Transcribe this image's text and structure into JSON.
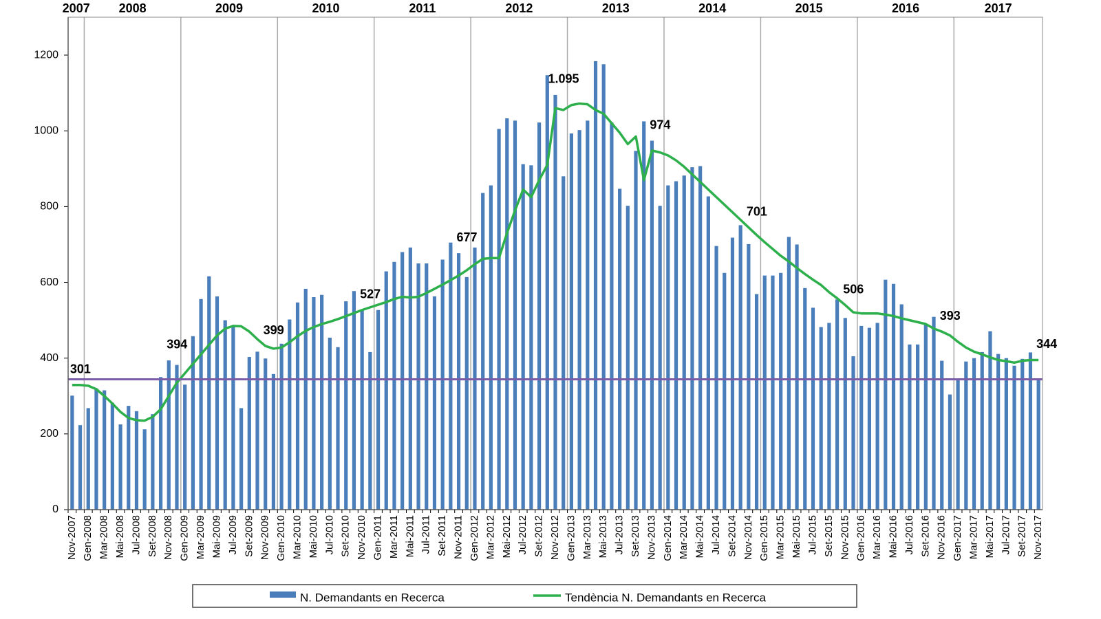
{
  "chart_data": {
    "type": "bar_line",
    "categories": [
      "Nov-2007",
      null,
      "Gen-2008",
      null,
      "Mar-2008",
      null,
      "Mai-2008",
      null,
      "Jul-2008",
      null,
      "Set-2008",
      null,
      "Nov-2008",
      null,
      "Gen-2009",
      null,
      "Mar-2009",
      null,
      "Mai-2009",
      null,
      "Jul-2009",
      null,
      "Set-2009",
      null,
      "Nov-2009",
      null,
      "Gen-2010",
      null,
      "Mar-2010",
      null,
      "Mai-2010",
      null,
      "Jul-2010",
      null,
      "Set-2010",
      null,
      "Nov-2010",
      null,
      "Gen-2011",
      null,
      "Mar-2011",
      null,
      "Mai-2011",
      null,
      "Jul-2011",
      null,
      "Set-2011",
      null,
      "Nov-2011",
      null,
      "Gen-2012",
      null,
      "Mar-2012",
      null,
      "Mai-2012",
      null,
      "Jul-2012",
      null,
      "Set-2012",
      null,
      "Nov-2012",
      null,
      "Gen-2013",
      null,
      "Mar-2013",
      null,
      "Mai-2013",
      null,
      "Jul-2013",
      null,
      "Set-2013",
      null,
      "Nov-2013",
      null,
      "Gen-2014",
      null,
      "Mar-2014",
      null,
      "Mai-2014",
      null,
      "Jul-2014",
      null,
      "Set-2014",
      null,
      "Nov-2014",
      null,
      "Gen-2015",
      null,
      "Mar-2015",
      null,
      "Mai-2015",
      null,
      "Jul-2015",
      null,
      "Set-2015",
      null,
      "Nov-2015",
      null,
      "Gen-2016",
      null,
      "Mar-2016",
      null,
      "Mai-2016",
      null,
      "Jul-2016",
      null,
      "Set-2016",
      null,
      "Nov-2016",
      null,
      "Gen-2017",
      null,
      "Mar-2017",
      null,
      "Mai-2017",
      null,
      "Jul-2017",
      null,
      "Set-2017",
      null,
      "Nov-2017"
    ],
    "years": [
      "2007",
      "2008",
      "2009",
      "2010",
      "2011",
      "2012",
      "2013",
      "2014",
      "2015",
      "2016",
      "2017"
    ],
    "series": [
      {
        "name": "N. Demandants en Recerca",
        "type": "bar",
        "color": "#4a7ebb",
        "values": [
          301,
          223,
          268,
          320,
          315,
          282,
          225,
          274,
          260,
          212,
          252,
          350,
          394,
          382,
          330,
          458,
          556,
          616,
          563,
          500,
          482,
          268,
          403,
          417,
          399,
          358,
          438,
          502,
          547,
          583,
          561,
          567,
          454,
          429,
          550,
          577,
          527,
          416,
          527,
          629,
          654,
          680,
          692,
          650,
          650,
          563,
          660,
          705,
          677,
          614,
          692,
          836,
          856,
          1005,
          1033,
          1027,
          912,
          909,
          1022,
          1147,
          1095,
          880,
          993,
          1002,
          1027,
          1184,
          1176,
          1022,
          847,
          802,
          947,
          1025,
          974,
          802,
          856,
          867,
          882,
          904,
          907,
          827,
          696,
          625,
          718,
          751,
          701,
          569,
          618,
          618,
          625,
          720,
          700,
          585,
          533,
          482,
          493,
          555,
          506,
          405,
          485,
          480,
          493,
          607,
          596,
          542,
          436,
          436,
          489,
          509,
          393,
          304,
          342,
          391,
          400,
          416,
          471,
          411,
          400,
          380,
          398,
          415,
          344
        ],
        "value_labels": [
          "301",
          null,
          null,
          null,
          null,
          null,
          null,
          null,
          null,
          null,
          null,
          null,
          "394",
          null,
          null,
          null,
          null,
          null,
          null,
          null,
          null,
          null,
          null,
          null,
          "399",
          null,
          null,
          null,
          null,
          null,
          null,
          null,
          null,
          null,
          null,
          null,
          "527",
          null,
          null,
          null,
          null,
          null,
          null,
          null,
          null,
          null,
          null,
          null,
          "677",
          null,
          null,
          null,
          null,
          null,
          null,
          null,
          null,
          null,
          null,
          null,
          "1.095",
          null,
          null,
          null,
          null,
          null,
          null,
          null,
          null,
          null,
          null,
          null,
          "974",
          null,
          null,
          null,
          null,
          null,
          null,
          null,
          null,
          null,
          null,
          null,
          "701",
          null,
          null,
          null,
          null,
          null,
          null,
          null,
          null,
          null,
          null,
          null,
          "506",
          null,
          null,
          null,
          null,
          null,
          null,
          null,
          null,
          null,
          null,
          null,
          "393",
          null,
          null,
          null,
          null,
          null,
          null,
          null,
          null,
          null,
          null,
          null,
          "344"
        ]
      },
      {
        "name": "Tendència N. Demandants en Recerca",
        "type": "line",
        "color": "#2db04b",
        "values": [
          329,
          329,
          327,
          318,
          300,
          280,
          258,
          242,
          236,
          235,
          245,
          265,
          300,
          335,
          360,
          385,
          410,
          435,
          460,
          478,
          485,
          484,
          470,
          450,
          432,
          425,
          428,
          442,
          458,
          472,
          482,
          490,
          496,
          503,
          511,
          519,
          527,
          534,
          541,
          548,
          556,
          562,
          560,
          562,
          572,
          583,
          594,
          606,
          618,
          632,
          648,
          662,
          664,
          664,
          730,
          790,
          845,
          825,
          870,
          910,
          1060,
          1055,
          1068,
          1072,
          1070,
          1055,
          1045,
          1020,
          995,
          965,
          985,
          870,
          948,
          943,
          935,
          922,
          905,
          885,
          865,
          845,
          825,
          805,
          785,
          765,
          745,
          725,
          706,
          688,
          670,
          655,
          638,
          622,
          607,
          593,
          574,
          558,
          540,
          521,
          518,
          518,
          518,
          515,
          511,
          505,
          500,
          495,
          490,
          478,
          470,
          460,
          443,
          428,
          417,
          410,
          402,
          395,
          392,
          388,
          393,
          395,
          395
        ]
      }
    ],
    "reference_line": {
      "value": 344,
      "color": "#7a5ca8"
    },
    "ylim": [
      0,
      1300
    ],
    "yticks": [
      0,
      200,
      400,
      600,
      800,
      1000,
      1200
    ]
  }
}
